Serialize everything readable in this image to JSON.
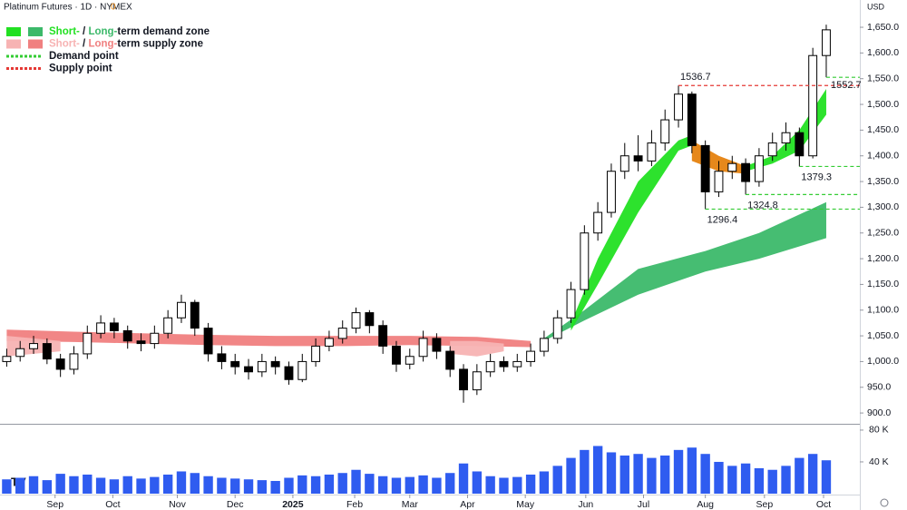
{
  "chart_data": {
    "type": "candlestick",
    "title": "Platinum Futures · 1D · NYMEX",
    "title_badge": "0",
    "currency": "USD",
    "x": [
      0,
      1,
      2,
      3,
      4,
      5,
      6,
      7,
      8,
      9,
      10,
      11,
      12,
      13,
      14,
      15,
      16,
      17,
      18,
      19,
      20,
      21,
      22,
      23,
      24,
      25,
      26,
      27,
      28,
      29,
      30,
      31,
      32,
      33,
      34,
      35,
      36,
      37,
      38,
      39,
      40,
      41,
      42,
      43,
      44,
      45,
      46,
      47,
      48,
      49,
      50,
      51,
      52,
      53,
      54,
      55,
      56,
      57,
      58,
      59,
      60,
      61
    ],
    "open": [
      1000,
      1010,
      1025,
      1035,
      1005,
      985,
      1015,
      1055,
      1075,
      1060,
      1040,
      1035,
      1055,
      1085,
      1115,
      1065,
      1015,
      1000,
      990,
      980,
      1000,
      990,
      965,
      1000,
      1030,
      1045,
      1065,
      1095,
      1070,
      1030,
      995,
      1010,
      1045,
      1020,
      985,
      945,
      980,
      1000,
      990,
      1000,
      1020,
      1045,
      1085,
      1140,
      1250,
      1290,
      1370,
      1400,
      1390,
      1425,
      1470,
      1520,
      1420,
      1330,
      1370,
      1385,
      1350,
      1400,
      1425,
      1445,
      1400,
      1595
    ],
    "high": [
      1025,
      1040,
      1050,
      1045,
      1015,
      1030,
      1070,
      1090,
      1085,
      1070,
      1055,
      1070,
      1100,
      1130,
      1120,
      1075,
      1030,
      1015,
      1005,
      1015,
      1010,
      1000,
      1015,
      1045,
      1060,
      1080,
      1105,
      1100,
      1080,
      1040,
      1025,
      1060,
      1055,
      1030,
      995,
      995,
      1015,
      1010,
      1015,
      1035,
      1060,
      1100,
      1155,
      1265,
      1310,
      1385,
      1425,
      1440,
      1450,
      1490,
      1536.7,
      1525,
      1430,
      1390,
      1400,
      1395,
      1415,
      1445,
      1465,
      1455,
      1610,
      1655
    ],
    "low": [
      990,
      1000,
      1015,
      995,
      970,
      975,
      1005,
      1045,
      1045,
      1025,
      1020,
      1025,
      1045,
      1075,
      1050,
      1000,
      985,
      975,
      965,
      970,
      975,
      955,
      960,
      990,
      1020,
      1035,
      1055,
      1055,
      1015,
      980,
      985,
      1000,
      1005,
      970,
      920,
      935,
      970,
      980,
      980,
      990,
      1010,
      1035,
      1075,
      1130,
      1235,
      1280,
      1355,
      1370,
      1380,
      1410,
      1455,
      1405,
      1296.4,
      1320,
      1355,
      1324.8,
      1340,
      1390,
      1410,
      1379.3,
      1395,
      1552.7
    ],
    "close": [
      1010,
      1025,
      1035,
      1005,
      985,
      1015,
      1055,
      1075,
      1060,
      1040,
      1035,
      1055,
      1085,
      1115,
      1065,
      1015,
      1000,
      990,
      980,
      1000,
      990,
      965,
      1000,
      1030,
      1045,
      1065,
      1095,
      1070,
      1030,
      995,
      1010,
      1045,
      1020,
      985,
      945,
      980,
      1000,
      990,
      1000,
      1020,
      1045,
      1085,
      1140,
      1250,
      1290,
      1370,
      1400,
      1390,
      1425,
      1470,
      1520,
      1420,
      1330,
      1370,
      1385,
      1350,
      1400,
      1425,
      1445,
      1400,
      1595,
      1645
    ],
    "volume": [
      18000,
      20000,
      22000,
      17000,
      25000,
      22000,
      24000,
      20000,
      18000,
      22000,
      19000,
      21000,
      24000,
      28000,
      26000,
      22000,
      20000,
      19000,
      18000,
      17000,
      16000,
      20000,
      23000,
      22000,
      24000,
      26000,
      30000,
      25000,
      22000,
      20000,
      21000,
      23000,
      20000,
      26000,
      38000,
      28000,
      22000,
      20000,
      21000,
      24000,
      28000,
      35000,
      45000,
      55000,
      60000,
      52000,
      48000,
      50000,
      45000,
      48000,
      55000,
      58000,
      50000,
      40000,
      35000,
      38000,
      32000,
      30000,
      35000,
      45000,
      50000,
      42000
    ],
    "volume_color": "#2f5cf0",
    "xlim": [
      -0.5,
      63.5
    ],
    "xticks": [
      {
        "value": 3.6,
        "label": "Sep"
      },
      {
        "value": 7.9,
        "label": "Oct"
      },
      {
        "value": 12.7,
        "label": "Nov"
      },
      {
        "value": 17.0,
        "label": "Dec"
      },
      {
        "value": 21.3,
        "label": "2025"
      },
      {
        "value": 25.9,
        "label": "Feb"
      },
      {
        "value": 30.0,
        "label": "Mar"
      },
      {
        "value": 34.3,
        "label": "Apr"
      },
      {
        "value": 38.6,
        "label": "May"
      },
      {
        "value": 43.1,
        "label": "Jun"
      },
      {
        "value": 47.4,
        "label": "Jul"
      },
      {
        "value": 52.0,
        "label": "Aug"
      },
      {
        "value": 56.4,
        "label": "Sep"
      },
      {
        "value": 60.8,
        "label": "Oct"
      }
    ],
    "ylim": [
      879,
      1703
    ],
    "yticks": [
      {
        "value": 900,
        "label": "900.0"
      },
      {
        "value": 950,
        "label": "950.0"
      },
      {
        "value": 1000,
        "label": "1,000.0"
      },
      {
        "value": 1050,
        "label": "1,050.0"
      },
      {
        "value": 1100,
        "label": "1,100.0"
      },
      {
        "value": 1150,
        "label": "1,150.0"
      },
      {
        "value": 1200,
        "label": "1,200.0"
      },
      {
        "value": 1250,
        "label": "1,250.0"
      },
      {
        "value": 1300,
        "label": "1,300.0"
      },
      {
        "value": 1350,
        "label": "1,350.0"
      },
      {
        "value": 1400,
        "label": "1,400.0"
      },
      {
        "value": 1450,
        "label": "1,450.0"
      },
      {
        "value": 1500,
        "label": "1,500.0"
      },
      {
        "value": 1550,
        "label": "1,550.0"
      },
      {
        "value": 1600,
        "label": "1,600.0"
      },
      {
        "value": 1650,
        "label": "1,650.0"
      }
    ],
    "y2lim": [
      0,
      84500
    ],
    "y2ticks": [
      {
        "value": 40000,
        "label": "40 K"
      },
      {
        "value": 80000,
        "label": "80 K"
      }
    ],
    "zones": [
      {
        "color": "#f08080",
        "x": [
          0,
          5,
          10,
          15,
          20,
          25,
          30,
          35,
          39
        ],
        "lower": [
          1040,
          1038,
          1035,
          1032,
          1030,
          1030,
          1032,
          1030,
          1028
        ],
        "upper": [
          1062,
          1058,
          1055,
          1052,
          1050,
          1050,
          1050,
          1048,
          1040
        ]
      },
      {
        "color": "#3cb96a",
        "x": [
          40,
          43,
          47,
          52,
          56,
          61
        ],
        "lower": [
          1040,
          1080,
          1130,
          1175,
          1200,
          1240
        ],
        "upper": [
          1045,
          1100,
          1180,
          1215,
          1250,
          1310
        ]
      },
      {
        "color": "#f7b3b3",
        "x": [
          0,
          2,
          4
        ],
        "lower": [
          1010,
          1015,
          1020
        ],
        "upper": [
          1050,
          1045,
          1040
        ]
      },
      {
        "color": "#f7b3b3",
        "x": [
          33,
          35,
          37
        ],
        "lower": [
          1015,
          1010,
          1020
        ],
        "upper": [
          1040,
          1040,
          1035
        ]
      },
      {
        "color": "#22e022",
        "x": [
          42,
          44,
          47,
          50,
          51
        ],
        "lower": [
          1060,
          1150,
          1290,
          1410,
          1420
        ],
        "upper": [
          1075,
          1200,
          1350,
          1430,
          1440
        ]
      },
      {
        "color": "#e5820f",
        "x": [
          51,
          53,
          55
        ],
        "lower": [
          1390,
          1370,
          1365
        ],
        "upper": [
          1430,
          1400,
          1380
        ]
      },
      {
        "color": "#22e022",
        "x": [
          55,
          57,
          59,
          61
        ],
        "lower": [
          1370,
          1385,
          1410,
          1480
        ],
        "upper": [
          1380,
          1400,
          1450,
          1530
        ]
      }
    ],
    "levels": [
      {
        "value": 1536.7,
        "x": 50,
        "color": "#e53935"
      },
      {
        "value": 1552.7,
        "x": 61,
        "color": "#33cc33"
      },
      {
        "value": 1379.3,
        "x": 59,
        "color": "#33cc33"
      },
      {
        "value": 1324.8,
        "x": 55,
        "color": "#33cc33"
      },
      {
        "value": 1296.4,
        "x": 52,
        "color": "#33cc33"
      }
    ],
    "legend": [
      {
        "swatches": [
          "#22e022",
          "#3cb96a"
        ],
        "parts": [
          {
            "text": "Short-",
            "color": "#22e022"
          },
          {
            "text": " / "
          },
          {
            "text": "Long-",
            "color": "#3cb96a"
          },
          {
            "text": "term demand zone"
          }
        ]
      },
      {
        "swatches": [
          "#f7b3b3",
          "#f08080"
        ],
        "parts": [
          {
            "text": "Short-",
            "color": "#f7b3b3"
          },
          {
            "text": " / "
          },
          {
            "text": "Long-",
            "color": "#f08080"
          },
          {
            "text": "term supply zone"
          }
        ]
      },
      {
        "line": "#33cc33",
        "parts": [
          {
            "text": "Demand point"
          }
        ]
      },
      {
        "line": "#e53935",
        "parts": [
          {
            "text": "Supply point"
          }
        ]
      }
    ]
  }
}
